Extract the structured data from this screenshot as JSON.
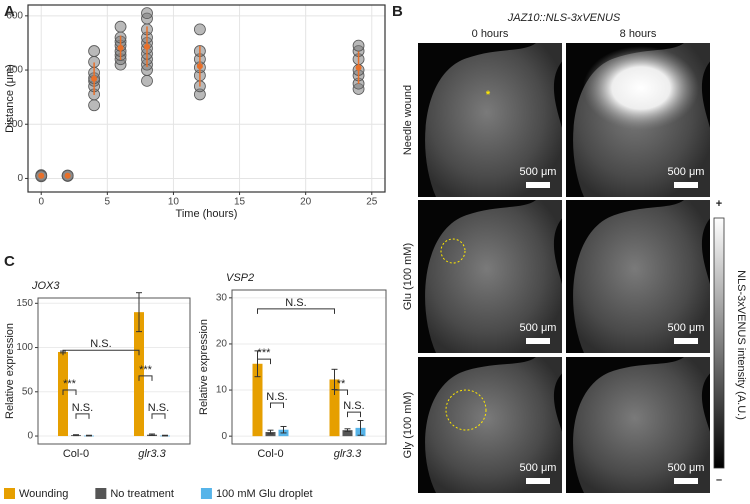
{
  "panel_labels": [
    "A",
    "B",
    "C"
  ],
  "chart_data": [
    {
      "type": "scatter",
      "xlabel": "Time (hours)",
      "ylabel": "Distance  (μm)",
      "xlim": [
        -1,
        26
      ],
      "ylim": [
        -50,
        640
      ],
      "xticks": [
        0,
        5,
        10,
        15,
        20,
        25
      ],
      "yticks": [
        0,
        200,
        400,
        600
      ],
      "grid": true,
      "points": {
        "color": "#808080",
        "x": [
          0,
          0,
          0,
          2,
          2,
          2,
          4,
          4,
          4,
          4,
          4,
          4,
          4,
          4,
          6,
          6,
          6,
          6,
          6,
          6,
          6,
          6,
          8,
          8,
          8,
          8,
          8,
          8,
          8,
          8,
          8,
          8,
          8,
          12,
          12,
          12,
          12,
          12,
          12,
          12,
          24,
          24,
          24,
          24,
          24,
          24,
          24
        ],
        "y": [
          10,
          12,
          8,
          10,
          9,
          11,
          270,
          310,
          340,
          360,
          370,
          390,
          430,
          470,
          420,
          440,
          455,
          470,
          490,
          505,
          520,
          560,
          360,
          400,
          420,
          440,
          460,
          480,
          500,
          520,
          550,
          590,
          610,
          310,
          340,
          380,
          410,
          440,
          470,
          550,
          330,
          350,
          380,
          400,
          440,
          470,
          490
        ]
      },
      "summary": {
        "color": "#e8702a",
        "x": [
          0,
          2,
          4,
          6,
          8,
          12,
          24
        ],
        "values": [
          10,
          10,
          368,
          482,
          486,
          414,
          409
        ],
        "errors": [
          3,
          2,
          60,
          45,
          75,
          75,
          60
        ]
      }
    },
    {
      "type": "bar",
      "title": "JOX3",
      "ylabel": "Relative expression",
      "categories": [
        "Col-0",
        "glr3.3"
      ],
      "category_style": [
        "normal",
        "italic"
      ],
      "ylim": [
        -9,
        156
      ],
      "yticks": [
        0,
        50,
        100,
        150
      ],
      "series": [
        {
          "values": [
            95,
            140
          ],
          "errors": [
            1,
            22
          ]
        },
        {
          "values": [
            1,
            1.5
          ],
          "errors": [
            0.5,
            0.8
          ]
        },
        {
          "values": [
            0.5,
            0.5
          ],
          "errors": [
            0.4,
            0.4
          ]
        }
      ],
      "annotations": [
        "N.S.",
        "***",
        "***",
        "N.S.",
        "N.S."
      ]
    },
    {
      "type": "bar",
      "title": "VSP2",
      "ylabel": "Relative expression",
      "categories": [
        "Col-0",
        "glr3.3"
      ],
      "category_style": [
        "normal",
        "italic"
      ],
      "ylim": [
        -1.7,
        31.7
      ],
      "yticks": [
        0,
        10,
        20,
        30
      ],
      "series": [
        {
          "values": [
            15.7,
            12.3
          ],
          "errors": [
            2.8,
            2.2
          ]
        },
        {
          "values": [
            0.9,
            1.3
          ],
          "errors": [
            0.4,
            0.3
          ]
        },
        {
          "values": [
            1.4,
            1.8
          ],
          "errors": [
            0.7,
            1.6
          ]
        }
      ],
      "annotations": [
        "N.S.",
        "***",
        "**",
        "N.S.",
        "N.S."
      ]
    }
  ],
  "legend": [
    {
      "name": "Wounding",
      "color": "#e69f00"
    },
    {
      "name": "No treatment",
      "color": "#555555"
    },
    {
      "name": "100 mM Glu droplet",
      "color": "#56b4e9"
    }
  ],
  "panel_b": {
    "title": "JAZ10::NLS-3xVENUS",
    "columns": [
      "0 hours",
      "8 hours"
    ],
    "rows": [
      "Needle wound",
      "Glu (100 mM)",
      "Gly (100 mM)"
    ],
    "scale_bar": "500 μm",
    "wound_marker": "*",
    "colorbar": {
      "label": "NLS-3xVENUS  intensity (A.U.)",
      "max_label": "+",
      "min_label": "–"
    }
  }
}
